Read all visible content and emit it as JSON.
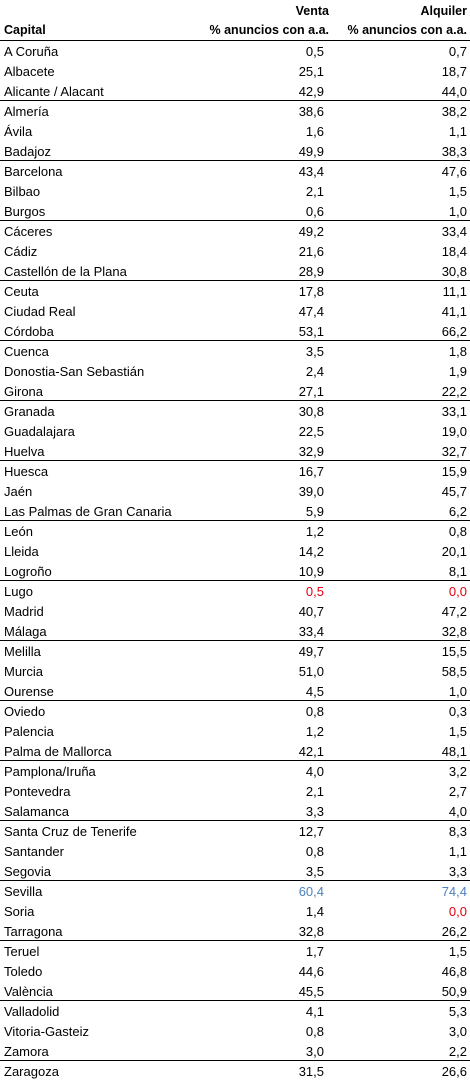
{
  "header": {
    "capital": "Capital",
    "venta": "Venta",
    "alquiler": "Alquiler",
    "sub": "% anuncios con a.a."
  },
  "colors": {
    "default": "#000000",
    "red": "#e0000f",
    "blue": "#4f81bd"
  },
  "rows": [
    {
      "name": "A Coruña",
      "venta": "0,5",
      "alquiler": "0,7"
    },
    {
      "name": "Albacete",
      "venta": "25,1",
      "alquiler": "18,7"
    },
    {
      "name": "Alicante / Alacant",
      "venta": "42,9",
      "alquiler": "44,0"
    },
    {
      "name": "Almería",
      "venta": "38,6",
      "alquiler": "38,2"
    },
    {
      "name": "Ávila",
      "venta": "1,6",
      "alquiler": "1,1"
    },
    {
      "name": "Badajoz",
      "venta": "49,9",
      "alquiler": "38,3"
    },
    {
      "name": "Barcelona",
      "venta": "43,4",
      "alquiler": "47,6"
    },
    {
      "name": "Bilbao",
      "venta": "2,1",
      "alquiler": "1,5"
    },
    {
      "name": "Burgos",
      "venta": "0,6",
      "alquiler": "1,0"
    },
    {
      "name": "Cáceres",
      "venta": "49,2",
      "alquiler": "33,4"
    },
    {
      "name": "Cádiz",
      "venta": "21,6",
      "alquiler": "18,4"
    },
    {
      "name": "Castellón de la Plana",
      "venta": "28,9",
      "alquiler": "30,8"
    },
    {
      "name": "Ceuta",
      "venta": "17,8",
      "alquiler": "11,1"
    },
    {
      "name": "Ciudad Real",
      "venta": "47,4",
      "alquiler": "41,1"
    },
    {
      "name": "Córdoba",
      "venta": "53,1",
      "alquiler": "66,2"
    },
    {
      "name": "Cuenca",
      "venta": "3,5",
      "alquiler": "1,8"
    },
    {
      "name": "Donostia-San Sebastián",
      "venta": "2,4",
      "alquiler": "1,9"
    },
    {
      "name": "Girona",
      "venta": "27,1",
      "alquiler": "22,2"
    },
    {
      "name": "Granada",
      "venta": "30,8",
      "alquiler": "33,1"
    },
    {
      "name": "Guadalajara",
      "venta": "22,5",
      "alquiler": "19,0"
    },
    {
      "name": "Huelva",
      "venta": "32,9",
      "alquiler": "32,7"
    },
    {
      "name": "Huesca",
      "venta": "16,7",
      "alquiler": "15,9"
    },
    {
      "name": "Jaén",
      "venta": "39,0",
      "alquiler": "45,7"
    },
    {
      "name": "Las Palmas de Gran Canaria",
      "venta": "5,9",
      "alquiler": "6,2"
    },
    {
      "name": "León",
      "venta": "1,2",
      "alquiler": "0,8"
    },
    {
      "name": "Lleida",
      "venta": "14,2",
      "alquiler": "20,1"
    },
    {
      "name": "Logroño",
      "venta": "10,9",
      "alquiler": "8,1"
    },
    {
      "name": "Lugo",
      "venta": "0,5",
      "alquiler": "0,0",
      "venta_color": "red",
      "alquiler_color": "red"
    },
    {
      "name": "Madrid",
      "venta": "40,7",
      "alquiler": "47,2"
    },
    {
      "name": "Málaga",
      "venta": "33,4",
      "alquiler": "32,8"
    },
    {
      "name": "Melilla",
      "venta": "49,7",
      "alquiler": "15,5"
    },
    {
      "name": "Murcia",
      "venta": "51,0",
      "alquiler": "58,5"
    },
    {
      "name": "Ourense",
      "venta": "4,5",
      "alquiler": "1,0"
    },
    {
      "name": "Oviedo",
      "venta": "0,8",
      "alquiler": "0,3"
    },
    {
      "name": "Palencia",
      "venta": "1,2",
      "alquiler": "1,5"
    },
    {
      "name": "Palma de Mallorca",
      "venta": "42,1",
      "alquiler": "48,1"
    },
    {
      "name": "Pamplona/Iruña",
      "venta": "4,0",
      "alquiler": "3,2"
    },
    {
      "name": "Pontevedra",
      "venta": "2,1",
      "alquiler": "2,7"
    },
    {
      "name": "Salamanca",
      "venta": "3,3",
      "alquiler": "4,0"
    },
    {
      "name": "Santa Cruz de Tenerife",
      "venta": "12,7",
      "alquiler": "8,3"
    },
    {
      "name": "Santander",
      "venta": "0,8",
      "alquiler": "1,1"
    },
    {
      "name": "Segovia",
      "venta": "3,5",
      "alquiler": "3,3"
    },
    {
      "name": "Sevilla",
      "venta": "60,4",
      "alquiler": "74,4",
      "venta_color": "blue",
      "alquiler_color": "blue"
    },
    {
      "name": "Soria",
      "venta": "1,4",
      "alquiler": "0,0",
      "alquiler_color": "red"
    },
    {
      "name": "Tarragona",
      "venta": "32,8",
      "alquiler": "26,2"
    },
    {
      "name": "Teruel",
      "venta": "1,7",
      "alquiler": "1,5"
    },
    {
      "name": "Toledo",
      "venta": "44,6",
      "alquiler": "46,8"
    },
    {
      "name": "València",
      "venta": "45,5",
      "alquiler": "50,9"
    },
    {
      "name": "Valladolid",
      "venta": "4,1",
      "alquiler": "5,3"
    },
    {
      "name": "Vitoria-Gasteiz",
      "venta": "0,8",
      "alquiler": "3,0"
    },
    {
      "name": "Zamora",
      "venta": "3,0",
      "alquiler": "2,2"
    },
    {
      "name": "Zaragoza",
      "venta": "31,5",
      "alquiler": "26,6"
    }
  ]
}
